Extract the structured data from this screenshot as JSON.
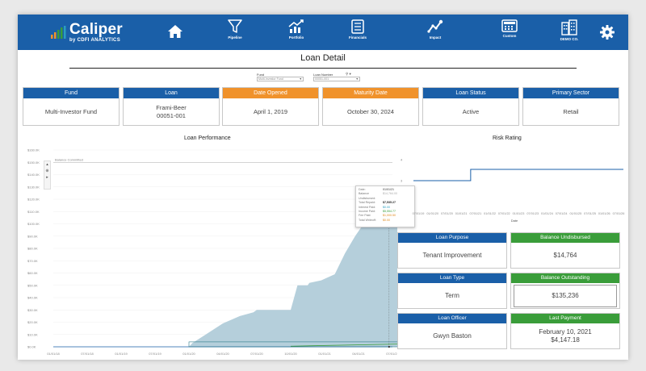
{
  "app": {
    "brand": "Caliper",
    "tagline": "by CDFI ANALYTICS",
    "nav": [
      {
        "id": "home",
        "label": ""
      },
      {
        "id": "pipeline",
        "label": "Pipeline"
      },
      {
        "id": "portfolio",
        "label": "Portfolio"
      },
      {
        "id": "financials",
        "label": "Financials"
      },
      {
        "id": "impact",
        "label": "Impact"
      },
      {
        "id": "custom",
        "label": "Custom"
      },
      {
        "id": "demo",
        "label": "DEMO CO."
      }
    ]
  },
  "page": {
    "title": "Loan Detail"
  },
  "filters": {
    "fund": {
      "label": "Fund",
      "value": "Multi-Investor Fund"
    },
    "loan_number": {
      "label": "Loan Number",
      "value": "00051-001"
    }
  },
  "cards": [
    {
      "label": "Fund",
      "value": "Multi-Investor Fund",
      "style": "blue"
    },
    {
      "label": "Loan",
      "value": "Frami-Beer\n00051-001",
      "style": "blue"
    },
    {
      "label": "Date Opened",
      "value": "April 1, 2019",
      "style": "orange"
    },
    {
      "label": "Maturity Date",
      "value": "October 30, 2024",
      "style": "orange"
    },
    {
      "label": "Loan Status",
      "value": "Active",
      "style": "blue"
    },
    {
      "label": "Primary Sector",
      "value": "Retail",
      "style": "blue"
    }
  ],
  "colors": {
    "header_blue": "#1a5fa8",
    "orange": "#f0922b",
    "green": "#3a9d3a",
    "area_fill": "#b5cfdb",
    "ref_line": "#aaaaaa"
  },
  "performance": {
    "title": "Loan Performance",
    "reference_label": "Balance Committed",
    "chart_data": {
      "type": "area",
      "x_labels": [
        "01/01/18",
        "07/01/18",
        "01/01/19",
        "07/01/19",
        "01/01/20",
        "04/01/20",
        "07/01/20",
        "10/01/20",
        "01/01/21",
        "04/01/21",
        "07/01/21"
      ],
      "y_ticks": [
        "$0.0K",
        "$10.0K",
        "$20.0K",
        "$30.0K",
        "$40.0K",
        "$50.0K",
        "$60.0K",
        "$70.0K",
        "$80.0K",
        "$90.0K",
        "$100.0K",
        "$110.0K",
        "$120.0K",
        "$130.0K",
        "$140.0K",
        "$150.0K",
        "$160.0K"
      ],
      "ylim": [
        0,
        160000
      ],
      "reference_value": 150000,
      "series": [
        {
          "name": "Total Repaid",
          "points": [
            [
              0,
              0
            ],
            [
              4,
              0
            ],
            [
              4.1,
              3000
            ],
            [
              5,
              19000
            ],
            [
              5.5,
              25000
            ],
            [
              5.9,
              28000
            ],
            [
              6,
              30000
            ],
            [
              6.8,
              30000
            ],
            [
              7,
              30000
            ],
            [
              7.2,
              50000
            ],
            [
              7.3,
              50000
            ],
            [
              7.5,
              50000
            ],
            [
              7.55,
              52000
            ],
            [
              7.9,
              54000
            ],
            [
              8.3,
              59000
            ],
            [
              8.6,
              76000
            ],
            [
              8.9,
              90000
            ],
            [
              9.2,
              102000
            ],
            [
              9.6,
              112000
            ],
            [
              9.9,
              120000
            ],
            [
              10.1,
              125000
            ],
            [
              10.2,
              128000
            ],
            [
              10.4,
              130000
            ],
            [
              10.5,
              132000
            ],
            [
              10.6,
              134000
            ],
            [
              10.7,
              135236
            ]
          ]
        }
      ]
    },
    "tooltip": {
      "rows": [
        {
          "key": "Date:",
          "value": "01/01/21",
          "style": ""
        },
        {
          "key": "Balance Undisbursed:",
          "value": "$14,764.00",
          "style": "grey"
        },
        {
          "key": "Total Repaid:",
          "value": "$7,535.27",
          "style": "dark"
        },
        {
          "key": "Interest Paid:",
          "value": "$0.00",
          "style": "teal"
        },
        {
          "key": "Income Paid:",
          "value": "$5,554.77",
          "style": "green"
        },
        {
          "key": "Fee Paid:",
          "value": "$1,000.50",
          "style": "orange"
        },
        {
          "key": "Total Writeoff:",
          "value": "$0.00",
          "style": "orange"
        }
      ]
    }
  },
  "risk": {
    "title": "Risk Rating",
    "x_axis_title": "Date",
    "x_labels": [
      "07/01/19",
      "01/01/20",
      "07/01/20",
      "01/01/21",
      "07/01/21",
      "01/01/22",
      "07/01/22",
      "01/01/23",
      "07/01/23",
      "01/01/24",
      "07/01/24",
      "01/01/25",
      "07/01/25",
      "01/01/26",
      "07/01/26"
    ],
    "y_ticks": [
      "4",
      "3"
    ]
  },
  "tiles": [
    {
      "label": "Loan Purpose",
      "value": "Tenant Improvement",
      "style": "blue",
      "boxed": false
    },
    {
      "label": "Balance Undisbursed",
      "value": "$14,764",
      "style": "green",
      "boxed": false
    },
    {
      "label": "Loan Type",
      "value": "Term",
      "style": "blue",
      "boxed": false
    },
    {
      "label": "Balance Outstanding",
      "value": "$135,236",
      "style": "green",
      "boxed": true
    },
    {
      "label": "Loan Officer",
      "value": "Gwyn Baston",
      "style": "blue",
      "boxed": false
    },
    {
      "label": "Last Payment",
      "value": "February 10, 2021\n$4,147.18",
      "style": "green",
      "boxed": false
    }
  ]
}
